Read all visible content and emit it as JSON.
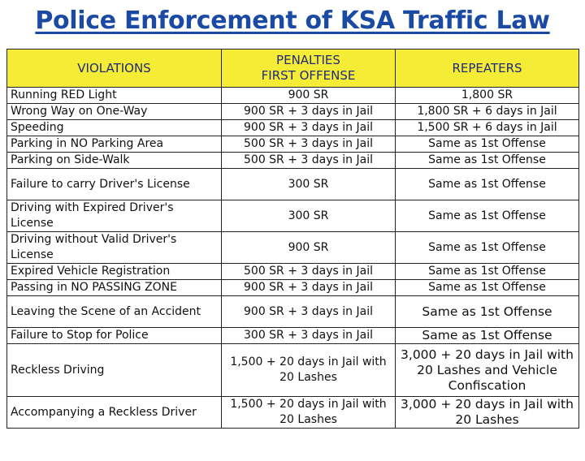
{
  "title": "Police Enforcement of KSA Traffic Law",
  "header": {
    "violations": "VIOLATIONS",
    "penalties_line1": "PENALTIES",
    "penalties_line2": "FIRST OFFENSE",
    "repeaters": "REPEATERS"
  },
  "rows": [
    {
      "violation": "Running RED Light",
      "penalty": "900 SR",
      "repeat": "1,800 SR"
    },
    {
      "violation": "Wrong Way on One-Way",
      "penalty": "900 SR + 3 days in Jail",
      "repeat": "1,800 SR + 6 days in Jail"
    },
    {
      "violation": "Speeding",
      "penalty": "900 SR + 3 days in Jail",
      "repeat": "1,500 SR + 6 days in Jail"
    },
    {
      "violation": "Parking in NO Parking Area",
      "penalty": "500 SR + 3 days in Jail",
      "repeat": "Same as 1st Offense"
    },
    {
      "violation": "Parking on Side-Walk",
      "penalty": "500 SR + 3 days in Jail",
      "repeat": "Same as 1st Offense"
    },
    {
      "violation": "Failure to carry Driver's License",
      "penalty": "300 SR",
      "repeat": "Same as 1st Offense"
    },
    {
      "violation": "Driving with Expired Driver's License",
      "penalty": "300 SR",
      "repeat": "Same as 1st Offense"
    },
    {
      "violation": "Driving without Valid Driver's License",
      "penalty": "900 SR",
      "repeat": "Same as 1st Offense"
    },
    {
      "violation": "Expired Vehicle Registration",
      "penalty": "500 SR + 3 days in Jail",
      "repeat": "Same as 1st Offense"
    },
    {
      "violation": "Passing in NO PASSING ZONE",
      "penalty": "900 SR + 3 days in Jail",
      "repeat": "Same as 1st Offense"
    },
    {
      "violation": "Leaving the Scene of an Accident",
      "penalty": "900 SR + 3 days in Jail",
      "repeat": "Same as 1st Offense"
    },
    {
      "violation": "Failure to Stop for Police",
      "penalty": "300 SR + 3 days in Jail",
      "repeat": "Same as 1st Offense"
    },
    {
      "violation": "Reckless Driving",
      "penalty": "1,500 + 20 days in Jail with 20 Lashes",
      "repeat": "3,000 + 20 days in Jail with 20 Lashes and Vehicle Confiscation"
    },
    {
      "violation": "Accompanying a Reckless Driver",
      "penalty": "1,500 + 20 days in Jail with 20 Lashes",
      "repeat": "3,000 + 20 days in Jail with 20 Lashes"
    }
  ],
  "colors": {
    "title": "#1b4aa5",
    "header_bg": "#f5ec36",
    "header_text": "#1f2a78"
  }
}
